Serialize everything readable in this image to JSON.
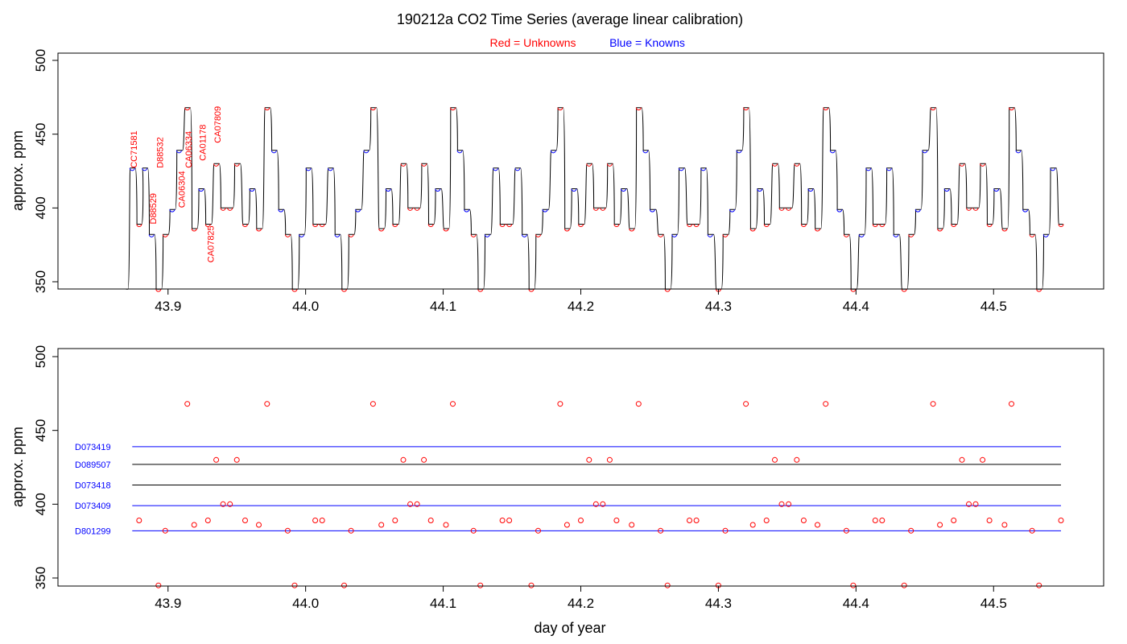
{
  "chart_data": [
    {
      "type": "line",
      "title": "190212a   CO2 Time Series (average linear calibration)",
      "legend": {
        "placement": "top-center",
        "entries": [
          {
            "label": "Red = Unknowns",
            "color": "#ff0000"
          },
          {
            "label": "Blue = Knowns",
            "color": "#0000ff"
          }
        ]
      },
      "xlabel": "",
      "ylabel": "approx. ppm",
      "xlim": [
        43.82,
        44.58
      ],
      "ylim": [
        345,
        500
      ],
      "xticks": [
        "43.9",
        "44.0",
        "44.1",
        "44.2",
        "44.3",
        "44.4",
        "44.5"
      ],
      "yticks": [
        "350",
        "400",
        "450",
        "500"
      ],
      "grid": false,
      "sequence": [
        {
          "x": 43.874,
          "y": 427,
          "kind": "known"
        },
        {
          "x": 43.879,
          "y": 389,
          "kind": "unknown"
        },
        {
          "x": 43.883,
          "y": 427,
          "kind": "known"
        },
        {
          "x": 43.888,
          "y": 382,
          "kind": "known"
        },
        {
          "x": 43.893,
          "y": 345,
          "kind": "unknown"
        },
        {
          "x": 43.898,
          "y": 382,
          "kind": "unknown"
        },
        {
          "x": 43.903,
          "y": 399,
          "kind": "known"
        },
        {
          "x": 43.908,
          "y": 439,
          "kind": "known"
        },
        {
          "x": 43.914,
          "y": 468,
          "kind": "unknown"
        },
        {
          "x": 43.919,
          "y": 386,
          "kind": "unknown"
        },
        {
          "x": 43.924,
          "y": 413,
          "kind": "known"
        },
        {
          "x": 43.929,
          "y": 389,
          "kind": "unknown"
        },
        {
          "x": 43.935,
          "y": 430,
          "kind": "unknown"
        },
        {
          "x": 43.94,
          "y": 400,
          "kind": "unknown"
        },
        {
          "x": 43.945,
          "y": 400,
          "kind": "unknown"
        },
        {
          "x": 43.95,
          "y": 430,
          "kind": "unknown"
        },
        {
          "x": 43.956,
          "y": 389,
          "kind": "unknown"
        },
        {
          "x": 43.961,
          "y": 413,
          "kind": "known"
        },
        {
          "x": 43.966,
          "y": 386,
          "kind": "unknown"
        },
        {
          "x": 43.972,
          "y": 468,
          "kind": "unknown"
        },
        {
          "x": 43.977,
          "y": 439,
          "kind": "known"
        },
        {
          "x": 43.982,
          "y": 399,
          "kind": "known"
        },
        {
          "x": 43.987,
          "y": 382,
          "kind": "unknown"
        },
        {
          "x": 43.992,
          "y": 345,
          "kind": "unknown"
        },
        {
          "x": 43.997,
          "y": 382,
          "kind": "known"
        },
        {
          "x": 44.002,
          "y": 427,
          "kind": "known"
        },
        {
          "x": 44.007,
          "y": 389,
          "kind": "unknown"
        },
        {
          "x": 44.012,
          "y": 389,
          "kind": "unknown"
        },
        {
          "x": 44.018,
          "y": 427,
          "kind": "known"
        },
        {
          "x": 44.023,
          "y": 382,
          "kind": "known"
        },
        {
          "x": 44.028,
          "y": 345,
          "kind": "unknown"
        },
        {
          "x": 44.033,
          "y": 382,
          "kind": "unknown"
        },
        {
          "x": 44.038,
          "y": 399,
          "kind": "known"
        },
        {
          "x": 44.044,
          "y": 439,
          "kind": "known"
        },
        {
          "x": 44.049,
          "y": 468,
          "kind": "unknown"
        },
        {
          "x": 44.055,
          "y": 386,
          "kind": "unknown"
        },
        {
          "x": 44.06,
          "y": 413,
          "kind": "known"
        },
        {
          "x": 44.065,
          "y": 389,
          "kind": "unknown"
        },
        {
          "x": 44.071,
          "y": 430,
          "kind": "unknown"
        },
        {
          "x": 44.076,
          "y": 400,
          "kind": "unknown"
        },
        {
          "x": 44.081,
          "y": 400,
          "kind": "unknown"
        },
        {
          "x": 44.086,
          "y": 430,
          "kind": "unknown"
        },
        {
          "x": 44.091,
          "y": 389,
          "kind": "unknown"
        },
        {
          "x": 44.096,
          "y": 413,
          "kind": "known"
        },
        {
          "x": 44.102,
          "y": 386,
          "kind": "unknown"
        },
        {
          "x": 44.107,
          "y": 468,
          "kind": "unknown"
        },
        {
          "x": 44.112,
          "y": 439,
          "kind": "known"
        },
        {
          "x": 44.117,
          "y": 399,
          "kind": "known"
        },
        {
          "x": 44.122,
          "y": 382,
          "kind": "unknown"
        },
        {
          "x": 44.127,
          "y": 345,
          "kind": "unknown"
        },
        {
          "x": 44.132,
          "y": 382,
          "kind": "known"
        },
        {
          "x": 44.138,
          "y": 427,
          "kind": "known"
        },
        {
          "x": 44.143,
          "y": 389,
          "kind": "unknown"
        },
        {
          "x": 44.148,
          "y": 389,
          "kind": "unknown"
        },
        {
          "x": 44.154,
          "y": 427,
          "kind": "known"
        },
        {
          "x": 44.159,
          "y": 382,
          "kind": "known"
        },
        {
          "x": 44.164,
          "y": 345,
          "kind": "unknown"
        },
        {
          "x": 44.169,
          "y": 382,
          "kind": "unknown"
        },
        {
          "x": 44.174,
          "y": 399,
          "kind": "known"
        },
        {
          "x": 44.18,
          "y": 439,
          "kind": "known"
        },
        {
          "x": 44.185,
          "y": 468,
          "kind": "unknown"
        },
        {
          "x": 44.19,
          "y": 386,
          "kind": "unknown"
        },
        {
          "x": 44.195,
          "y": 413,
          "kind": "known"
        },
        {
          "x": 44.2,
          "y": 389,
          "kind": "unknown"
        },
        {
          "x": 44.206,
          "y": 430,
          "kind": "unknown"
        },
        {
          "x": 44.211,
          "y": 400,
          "kind": "unknown"
        },
        {
          "x": 44.216,
          "y": 400,
          "kind": "unknown"
        },
        {
          "x": 44.221,
          "y": 430,
          "kind": "unknown"
        },
        {
          "x": 44.226,
          "y": 389,
          "kind": "unknown"
        },
        {
          "x": 44.231,
          "y": 413,
          "kind": "known"
        },
        {
          "x": 44.237,
          "y": 386,
          "kind": "unknown"
        },
        {
          "x": 44.242,
          "y": 468,
          "kind": "unknown"
        },
        {
          "x": 44.247,
          "y": 439,
          "kind": "known"
        },
        {
          "x": 44.252,
          "y": 399,
          "kind": "known"
        },
        {
          "x": 44.258,
          "y": 382,
          "kind": "unknown"
        },
        {
          "x": 44.263,
          "y": 345,
          "kind": "unknown"
        },
        {
          "x": 44.268,
          "y": 382,
          "kind": "known"
        },
        {
          "x": 44.273,
          "y": 427,
          "kind": "known"
        },
        {
          "x": 44.279,
          "y": 389,
          "kind": "unknown"
        },
        {
          "x": 44.284,
          "y": 389,
          "kind": "unknown"
        },
        {
          "x": 44.289,
          "y": 427,
          "kind": "known"
        },
        {
          "x": 44.294,
          "y": 382,
          "kind": "known"
        },
        {
          "x": 44.3,
          "y": 345,
          "kind": "unknown"
        },
        {
          "x": 44.305,
          "y": 382,
          "kind": "unknown"
        },
        {
          "x": 44.31,
          "y": 399,
          "kind": "known"
        },
        {
          "x": 44.315,
          "y": 439,
          "kind": "known"
        },
        {
          "x": 44.32,
          "y": 468,
          "kind": "unknown"
        },
        {
          "x": 44.325,
          "y": 386,
          "kind": "unknown"
        },
        {
          "x": 44.33,
          "y": 413,
          "kind": "known"
        },
        {
          "x": 44.335,
          "y": 389,
          "kind": "unknown"
        },
        {
          "x": 44.341,
          "y": 430,
          "kind": "unknown"
        },
        {
          "x": 44.346,
          "y": 400,
          "kind": "unknown"
        },
        {
          "x": 44.351,
          "y": 400,
          "kind": "unknown"
        },
        {
          "x": 44.357,
          "y": 430,
          "kind": "unknown"
        },
        {
          "x": 44.362,
          "y": 389,
          "kind": "unknown"
        },
        {
          "x": 44.367,
          "y": 413,
          "kind": "known"
        },
        {
          "x": 44.372,
          "y": 386,
          "kind": "unknown"
        },
        {
          "x": 44.378,
          "y": 468,
          "kind": "unknown"
        },
        {
          "x": 44.383,
          "y": 439,
          "kind": "known"
        },
        {
          "x": 44.388,
          "y": 399,
          "kind": "known"
        },
        {
          "x": 44.393,
          "y": 382,
          "kind": "unknown"
        },
        {
          "x": 44.398,
          "y": 345,
          "kind": "unknown"
        },
        {
          "x": 44.404,
          "y": 382,
          "kind": "known"
        },
        {
          "x": 44.409,
          "y": 427,
          "kind": "known"
        },
        {
          "x": 44.414,
          "y": 389,
          "kind": "unknown"
        },
        {
          "x": 44.419,
          "y": 389,
          "kind": "unknown"
        },
        {
          "x": 44.424,
          "y": 427,
          "kind": "known"
        },
        {
          "x": 44.429,
          "y": 382,
          "kind": "known"
        },
        {
          "x": 44.435,
          "y": 345,
          "kind": "unknown"
        },
        {
          "x": 44.44,
          "y": 382,
          "kind": "unknown"
        },
        {
          "x": 44.445,
          "y": 399,
          "kind": "known"
        },
        {
          "x": 44.45,
          "y": 439,
          "kind": "known"
        },
        {
          "x": 44.456,
          "y": 468,
          "kind": "unknown"
        },
        {
          "x": 44.461,
          "y": 386,
          "kind": "unknown"
        },
        {
          "x": 44.466,
          "y": 413,
          "kind": "known"
        },
        {
          "x": 44.471,
          "y": 389,
          "kind": "unknown"
        },
        {
          "x": 44.477,
          "y": 430,
          "kind": "unknown"
        },
        {
          "x": 44.482,
          "y": 400,
          "kind": "unknown"
        },
        {
          "x": 44.487,
          "y": 400,
          "kind": "unknown"
        },
        {
          "x": 44.492,
          "y": 430,
          "kind": "unknown"
        },
        {
          "x": 44.497,
          "y": 389,
          "kind": "unknown"
        },
        {
          "x": 44.502,
          "y": 413,
          "kind": "known"
        },
        {
          "x": 44.508,
          "y": 386,
          "kind": "unknown"
        },
        {
          "x": 44.513,
          "y": 468,
          "kind": "unknown"
        },
        {
          "x": 44.518,
          "y": 439,
          "kind": "known"
        },
        {
          "x": 44.523,
          "y": 399,
          "kind": "known"
        },
        {
          "x": 44.528,
          "y": 382,
          "kind": "unknown"
        },
        {
          "x": 44.533,
          "y": 345,
          "kind": "unknown"
        },
        {
          "x": 44.538,
          "y": 382,
          "kind": "known"
        },
        {
          "x": 44.543,
          "y": 427,
          "kind": "known"
        },
        {
          "x": 44.549,
          "y": 389,
          "kind": "unknown"
        }
      ],
      "annotations": [
        {
          "text": "CC71581",
          "x": 43.879,
          "y": 427,
          "color": "#ff0000"
        },
        {
          "text": "D88529",
          "x": 43.893,
          "y": 389,
          "color": "#ff0000"
        },
        {
          "text": "D88532",
          "x": 43.898,
          "y": 427,
          "color": "#ff0000"
        },
        {
          "text": "CA06304",
          "x": 43.914,
          "y": 400,
          "color": "#ff0000"
        },
        {
          "text": "CA06334",
          "x": 43.919,
          "y": 427,
          "color": "#ff0000"
        },
        {
          "text": "CA01178",
          "x": 43.929,
          "y": 432,
          "color": "#ff0000"
        },
        {
          "text": "CA07825",
          "x": 43.935,
          "y": 363,
          "color": "#ff0000"
        },
        {
          "text": "CA07809",
          "x": 43.94,
          "y": 444,
          "color": "#ff0000"
        }
      ]
    },
    {
      "type": "scatter",
      "xlabel": "day of year",
      "ylabel": "approx. ppm",
      "xlim": [
        43.82,
        44.58
      ],
      "ylim": [
        345,
        500
      ],
      "xticks": [
        "43.9",
        "44.0",
        "44.1",
        "44.2",
        "44.3",
        "44.4",
        "44.5"
      ],
      "yticks": [
        "350",
        "400",
        "450",
        "500"
      ],
      "grid": false,
      "reference_lines": [
        {
          "name": "D073419",
          "y": 439,
          "x_start": 43.874,
          "x_end": 44.549,
          "line_color": "#0000ff",
          "label_color": "#0000ff"
        },
        {
          "name": "D089507",
          "y": 427,
          "x_start": 43.874,
          "x_end": 44.549,
          "line_color": "#000000",
          "label_color": "#0000ff"
        },
        {
          "name": "D073418",
          "y": 413,
          "x_start": 43.874,
          "x_end": 44.549,
          "line_color": "#000000",
          "label_color": "#0000ff"
        },
        {
          "name": "D073409",
          "y": 399,
          "x_start": 43.874,
          "x_end": 44.549,
          "line_color": "#0000ff",
          "label_color": "#0000ff"
        },
        {
          "name": "D801299",
          "y": 382,
          "x_start": 43.874,
          "x_end": 44.549,
          "line_color": "#0000ff",
          "label_color": "#0000ff"
        }
      ],
      "points_source": "unknown samples of the time series above",
      "point_color": "#ff0000"
    }
  ]
}
